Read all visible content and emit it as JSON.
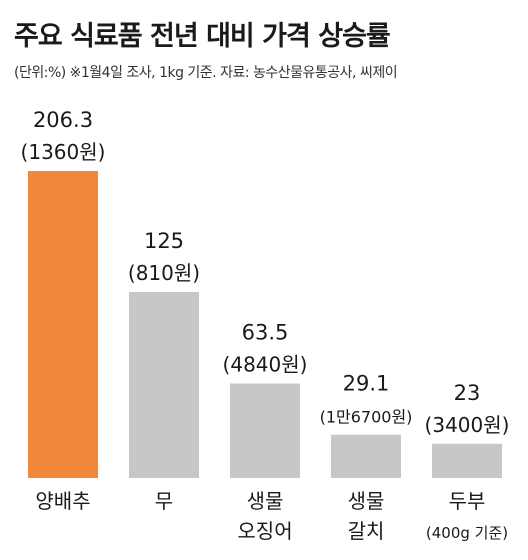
{
  "title": "주요 식료품 전년 대비 가격 상승률",
  "subtitle": "(단위:%)  ※1월4일 조사, 1kg 기준.  자료: 농수산물유통공사, 씨제이",
  "colors": {
    "highlight": "#f0873a",
    "bar": "#c7c7c7"
  },
  "chart_data": {
    "type": "bar",
    "unit": "%",
    "categories": [
      {
        "lines": [
          "양배추"
        ]
      },
      {
        "lines": [
          "무"
        ]
      },
      {
        "lines": [
          "생물",
          "오징어"
        ]
      },
      {
        "lines": [
          "생물",
          "갈치"
        ]
      },
      {
        "lines": [
          "두부",
          "(400g 기준)"
        ]
      }
    ],
    "values": [
      206.3,
      125,
      63.5,
      29.1,
      23
    ],
    "value_labels": [
      "206.3",
      "125",
      "63.5",
      "29.1",
      "23"
    ],
    "price_labels": [
      "(1360원)",
      "(810원)",
      "(4840원)",
      "(1만6700원)",
      "(3400원)"
    ],
    "highlight_index": 0,
    "ylim": [
      0,
      206.3
    ],
    "grid": false,
    "legend": "none"
  }
}
